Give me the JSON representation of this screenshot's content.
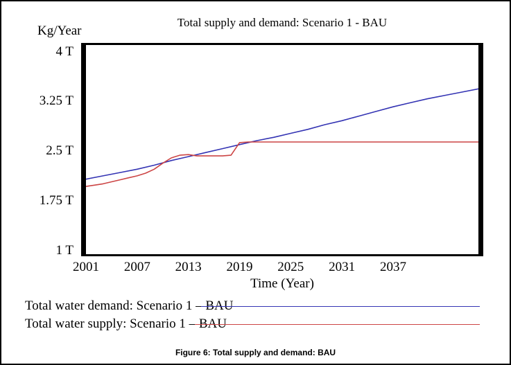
{
  "figure": {
    "caption": "Figure 6: Total supply and demand: BAU"
  },
  "chart_data": {
    "type": "line",
    "title": "Total supply and demand: Scenario 1 - BAU",
    "y_unit_label": "Kg/Year",
    "xlabel": "Time (Year)",
    "grid": false,
    "legend_position": "below-left",
    "xlim": [
      2001,
      2047
    ],
    "ylim": [
      0.95,
      4.1
    ],
    "x_ticks": [
      {
        "label": "2001",
        "value": 2001
      },
      {
        "label": "2007",
        "value": 2007
      },
      {
        "label": "2013",
        "value": 2013
      },
      {
        "label": "2019",
        "value": 2019
      },
      {
        "label": "2025",
        "value": 2025
      },
      {
        "label": "2031",
        "value": 2031
      },
      {
        "label": "2037",
        "value": 2037
      }
    ],
    "y_ticks": [
      {
        "label": "4 T",
        "value": 4
      },
      {
        "label": "3.25 T",
        "value": 3.25
      },
      {
        "label": "2.5 T",
        "value": 2.5
      },
      {
        "label": "1.75 T",
        "value": 1.75
      },
      {
        "label": "1 T",
        "value": 1
      }
    ],
    "series": [
      {
        "name": "Total water demand: Scenario 1 – BAU",
        "color": "#3333b3",
        "points": [
          [
            2001,
            2.08
          ],
          [
            2003,
            2.13
          ],
          [
            2005,
            2.18
          ],
          [
            2007,
            2.23
          ],
          [
            2009,
            2.29
          ],
          [
            2011,
            2.36
          ],
          [
            2013,
            2.42
          ],
          [
            2015,
            2.48
          ],
          [
            2017,
            2.54
          ],
          [
            2019,
            2.6
          ],
          [
            2021,
            2.66
          ],
          [
            2023,
            2.71
          ],
          [
            2025,
            2.77
          ],
          [
            2027,
            2.83
          ],
          [
            2029,
            2.9
          ],
          [
            2031,
            2.96
          ],
          [
            2033,
            3.03
          ],
          [
            2035,
            3.1
          ],
          [
            2037,
            3.17
          ],
          [
            2039,
            3.23
          ],
          [
            2041,
            3.29
          ],
          [
            2043,
            3.34
          ],
          [
            2045,
            3.39
          ],
          [
            2047,
            3.44
          ]
        ]
      },
      {
        "name": "Total water supply: Scenario 1 – BAU",
        "color": "#cc4444",
        "points": [
          [
            2001,
            1.97
          ],
          [
            2002,
            1.99
          ],
          [
            2003,
            2.01
          ],
          [
            2004,
            2.04
          ],
          [
            2005,
            2.07
          ],
          [
            2006,
            2.1
          ],
          [
            2007,
            2.13
          ],
          [
            2008,
            2.17
          ],
          [
            2009,
            2.23
          ],
          [
            2010,
            2.32
          ],
          [
            2011,
            2.4
          ],
          [
            2012,
            2.44
          ],
          [
            2013,
            2.45
          ],
          [
            2014,
            2.43
          ],
          [
            2015,
            2.43
          ],
          [
            2016,
            2.43
          ],
          [
            2017,
            2.43
          ],
          [
            2018,
            2.44
          ],
          [
            2019,
            2.63
          ],
          [
            2020,
            2.64
          ],
          [
            2026,
            2.64
          ],
          [
            2033,
            2.64
          ],
          [
            2040,
            2.64
          ],
          [
            2047,
            2.64
          ]
        ]
      }
    ]
  }
}
